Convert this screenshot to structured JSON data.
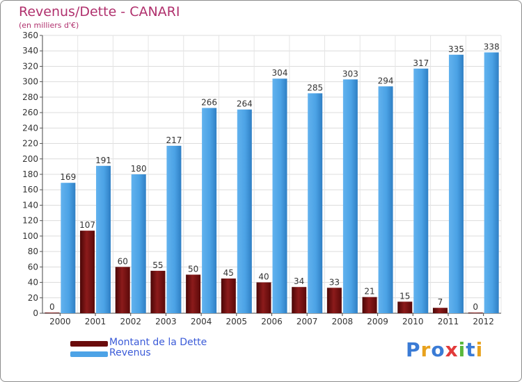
{
  "chart_data": {
    "type": "bar",
    "title": "Revenus/Dette - CANARI",
    "subtitle": "(en milliers d'€)",
    "categories": [
      "2000",
      "2001",
      "2002",
      "2003",
      "2004",
      "2005",
      "2006",
      "2007",
      "2008",
      "2009",
      "2010",
      "2011",
      "2012"
    ],
    "series": [
      {
        "name": "Montant de la Dette",
        "values": [
          0,
          107,
          60,
          55,
          50,
          45,
          40,
          34,
          33,
          21,
          15,
          7,
          0
        ],
        "color": "#7a1010"
      },
      {
        "name": "Revenus",
        "values": [
          169,
          191,
          180,
          217,
          266,
          264,
          304,
          285,
          303,
          294,
          317,
          335,
          338
        ],
        "color": "#4da3e6"
      }
    ],
    "ylim": [
      0,
      360
    ],
    "yticks": [
      0,
      20,
      40,
      60,
      80,
      100,
      120,
      140,
      160,
      180,
      200,
      220,
      240,
      260,
      280,
      300,
      320,
      340,
      360
    ],
    "grid": true,
    "legend_position": "bottom-left"
  },
  "branding": {
    "logo_text": "Proxiti",
    "letter_colors": [
      "#3a7bd5",
      "#e8a21e",
      "#3a7bd5",
      "#e23a3a",
      "#5ab83c",
      "#3a7bd5",
      "#e8a21e"
    ]
  }
}
